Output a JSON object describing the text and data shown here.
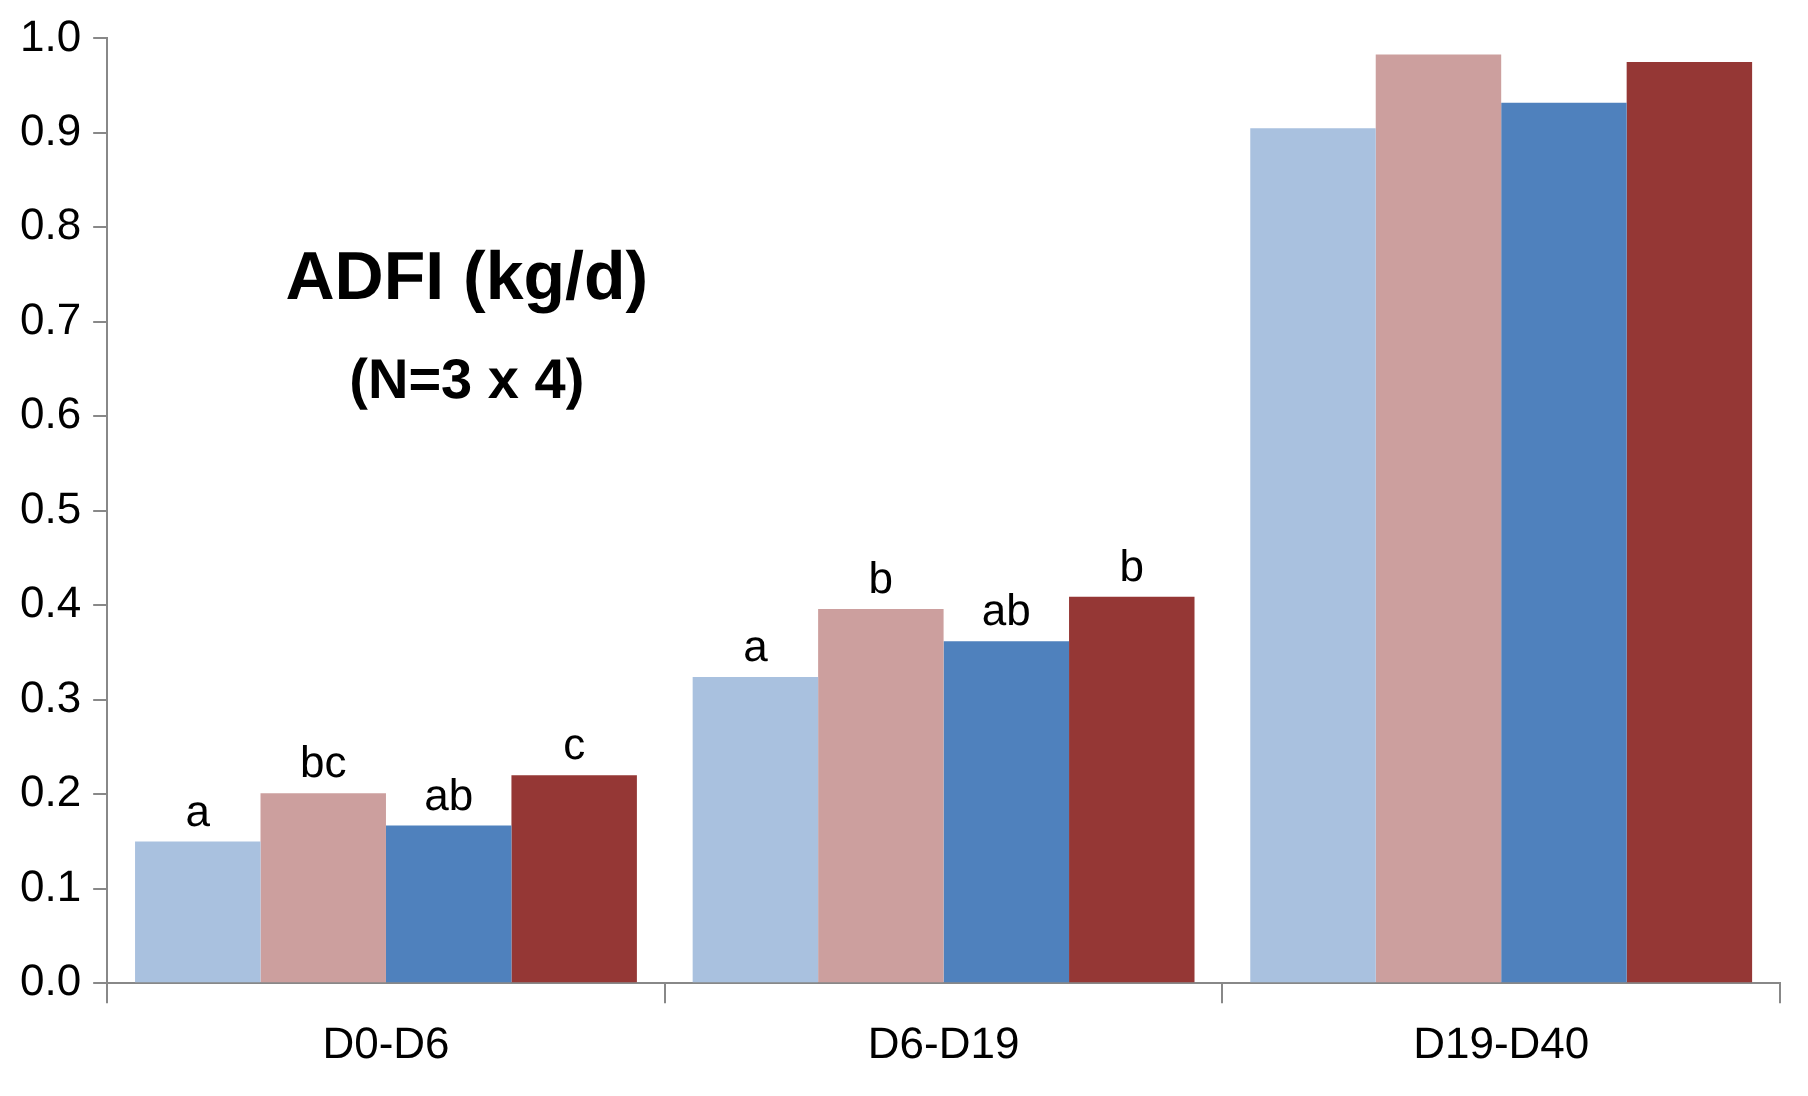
{
  "chart_data": {
    "type": "bar",
    "title": "ADFI (kg/d)",
    "subtitle": "(N=3 x 4)",
    "categories": [
      "D0-D6",
      "D6-D19",
      "D19-D40"
    ],
    "series": [
      {
        "color": "#a9c1df",
        "values": [
          0.15,
          0.324,
          0.905
        ],
        "value_labels": [
          "a",
          "a",
          null
        ]
      },
      {
        "color": "#cc9f9e",
        "values": [
          0.201,
          0.396,
          0.983
        ],
        "value_labels": [
          "bc",
          "b",
          null
        ]
      },
      {
        "color": "#4f81bd",
        "values": [
          0.167,
          0.362,
          0.932
        ],
        "value_labels": [
          "ab",
          "ab",
          null
        ]
      },
      {
        "color": "#953735",
        "values": [
          0.22,
          0.409,
          0.975
        ],
        "value_labels": [
          "c",
          "b",
          null
        ]
      }
    ],
    "ylim": [
      0,
      1
    ],
    "yticks": [
      {
        "value": 0,
        "label": "0.0"
      },
      {
        "value": 0.1,
        "label": "0.1"
      },
      {
        "value": 0.2,
        "label": "0.2"
      },
      {
        "value": 0.3,
        "label": "0.3"
      },
      {
        "value": 0.4,
        "label": "0.4"
      },
      {
        "value": 0.5,
        "label": "0.5"
      },
      {
        "value": 0.6,
        "label": "0.6"
      },
      {
        "value": 0.7,
        "label": "0.7"
      },
      {
        "value": 0.8,
        "label": "0.8"
      },
      {
        "value": 0.9,
        "label": "0.9"
      },
      {
        "value": 1,
        "label": "1.0"
      }
    ],
    "grid": false,
    "legend": false
  }
}
